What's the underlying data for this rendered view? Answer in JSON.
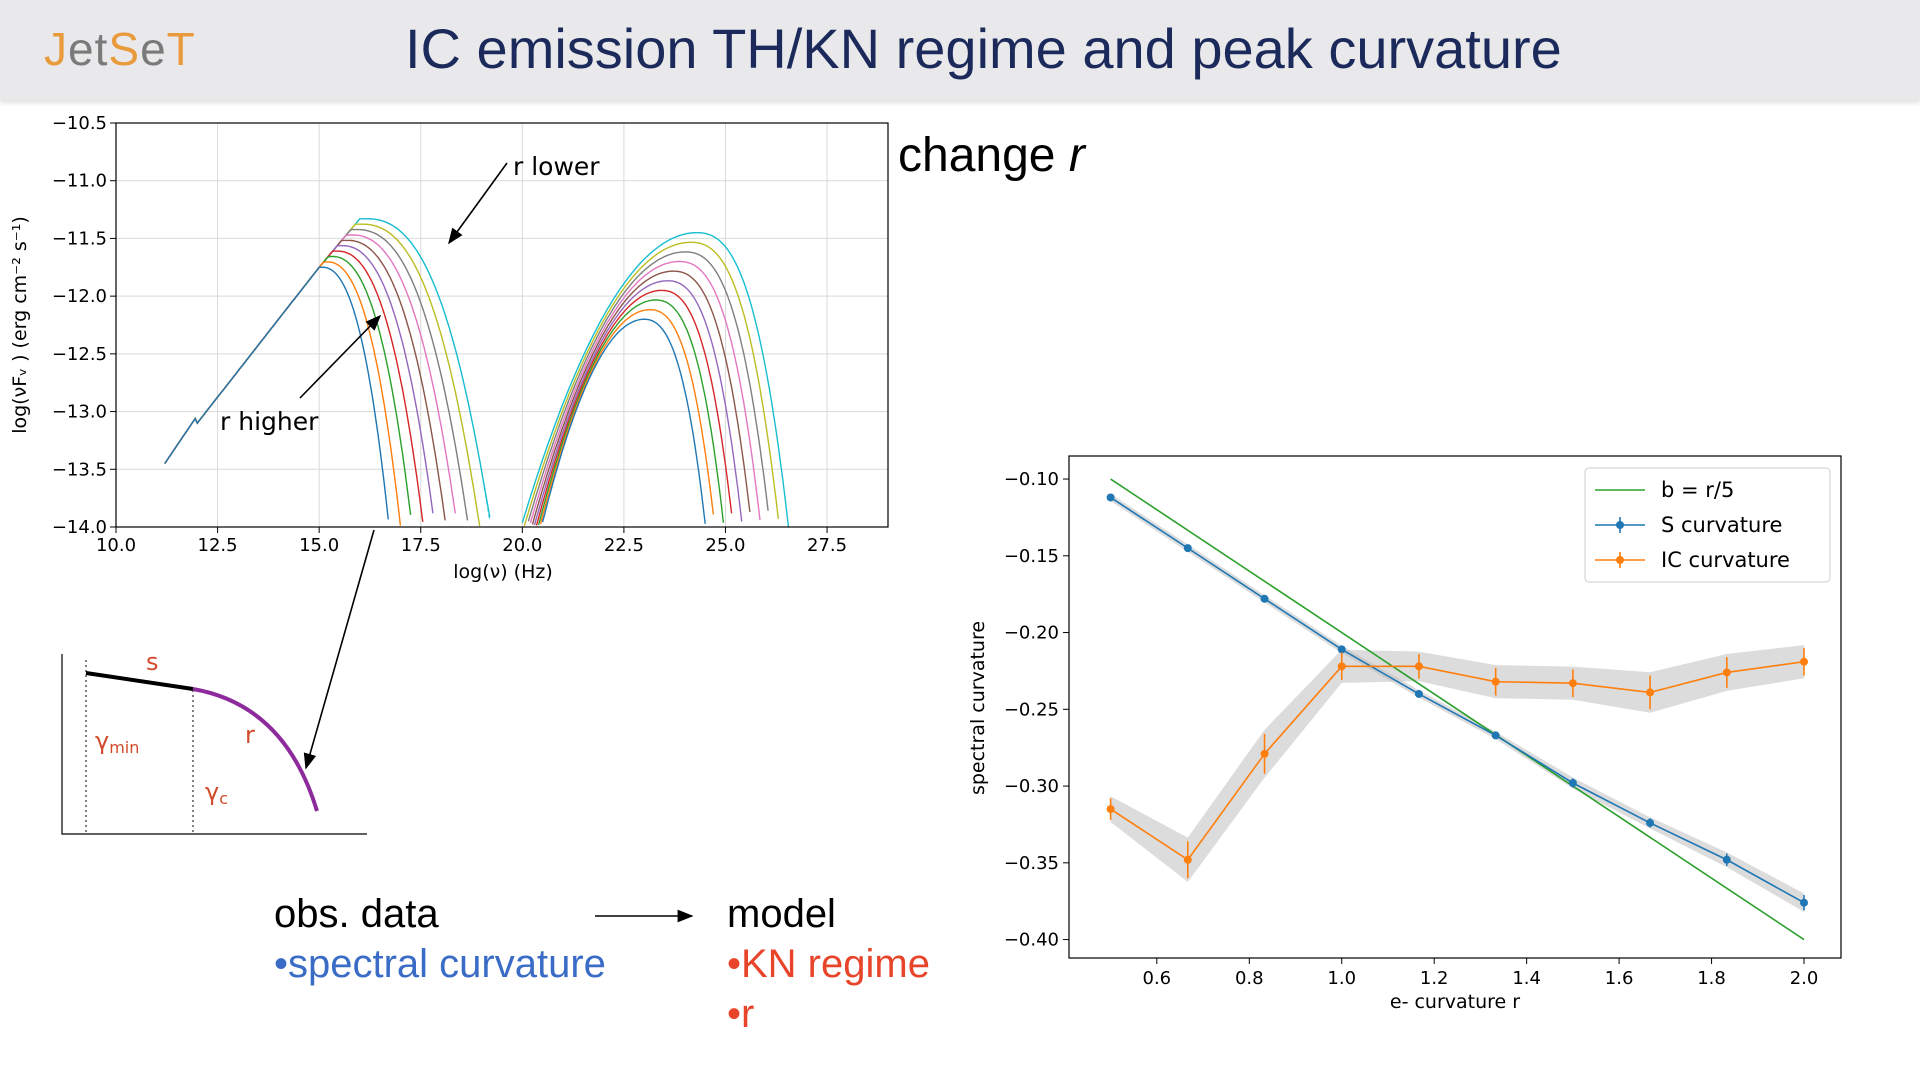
{
  "header": {
    "logo_parts": [
      "J",
      "et",
      "S",
      "e",
      "T"
    ],
    "title": "IC emission TH/KN regime and peak  curvature"
  },
  "change_label": {
    "text": "change ",
    "var": "r"
  },
  "sed_plot": {
    "ylabel": "log(νFᵥ )  (erg cm⁻²  s⁻¹)",
    "xlabel": "log(ν)  (Hz)",
    "xlim": [
      10.0,
      29.0
    ],
    "ylim": [
      -14.0,
      -10.5
    ],
    "xticks": [
      "10.0",
      "12.5",
      "15.0",
      "17.5",
      "20.0",
      "22.5",
      "25.0",
      "27.5"
    ],
    "yticks": [
      "−10.5",
      "−11.0",
      "−11.5",
      "−12.0",
      "−12.5",
      "−13.0",
      "−13.5",
      "−14.0"
    ],
    "annotation_lower": "r lower",
    "annotation_higher": "r higher",
    "colors": [
      "#17becf",
      "#bcbd22",
      "#7f7f7f",
      "#e377c2",
      "#8c564b",
      "#9467bd",
      "#d62728",
      "#2ca02c",
      "#ff7f0e",
      "#1f77b4"
    ]
  },
  "schematic": {
    "s_label": "s",
    "r_label": "r",
    "gmin_main": "γ",
    "gmin_sub": "min",
    "gc_main": "γ",
    "gc_sub": "c",
    "colors": {
      "s_line": "#000000",
      "r_line": "#8e2b9c",
      "labels": "#d24a2c"
    }
  },
  "bottom_text": {
    "obs_title": "obs. data",
    "obs_item": "•spectral curvature",
    "model_title": "model",
    "model_items": [
      "•KN regime",
      "•r"
    ],
    "colors": {
      "blue": "#3a6cc6",
      "red": "#e8442a"
    }
  },
  "chart_data": {
    "type": "line",
    "xlabel": "e- curvature r",
    "ylabel": "spectral curvature",
    "xlim": [
      0.41,
      2.08
    ],
    "ylim": [
      -0.412,
      -0.085
    ],
    "xticks": [
      0.6,
      0.8,
      1.0,
      1.2,
      1.4,
      1.6,
      1.8,
      2.0
    ],
    "yticks": [
      -0.1,
      -0.15,
      -0.2,
      -0.25,
      -0.3,
      -0.35,
      -0.4
    ],
    "xtick_labels": [
      "0.6",
      "0.8",
      "1.0",
      "1.2",
      "1.4",
      "1.6",
      "1.8",
      "2.0"
    ],
    "ytick_labels": [
      "−0.10",
      "−0.15",
      "−0.20",
      "−0.25",
      "−0.30",
      "−0.35",
      "−0.40"
    ],
    "legend_position": "top-right",
    "series": [
      {
        "name": "b = r/5",
        "color": "#2ca02c",
        "x": [
          0.5,
          2.0
        ],
        "y": [
          -0.1,
          -0.4
        ]
      },
      {
        "name": "S curvature",
        "color": "#1f77b4",
        "x": [
          0.5,
          0.667,
          0.833,
          1.0,
          1.167,
          1.333,
          1.5,
          1.667,
          1.833,
          2.0
        ],
        "y": [
          -0.112,
          -0.145,
          -0.178,
          -0.211,
          -0.24,
          -0.267,
          -0.298,
          -0.324,
          -0.348,
          -0.376
        ],
        "err": [
          0.002,
          0.002,
          0.002,
          0.002,
          0.002,
          0.002,
          0.003,
          0.003,
          0.004,
          0.005
        ]
      },
      {
        "name": "IC curvature",
        "color": "#ff7f0e",
        "x": [
          0.5,
          0.667,
          0.833,
          1.0,
          1.167,
          1.333,
          1.5,
          1.667,
          1.833,
          2.0
        ],
        "y": [
          -0.315,
          -0.348,
          -0.279,
          -0.222,
          -0.222,
          -0.232,
          -0.233,
          -0.239,
          -0.226,
          -0.219
        ],
        "err": [
          0.007,
          0.012,
          0.013,
          0.009,
          0.008,
          0.009,
          0.009,
          0.011,
          0.01,
          0.009
        ]
      }
    ]
  }
}
